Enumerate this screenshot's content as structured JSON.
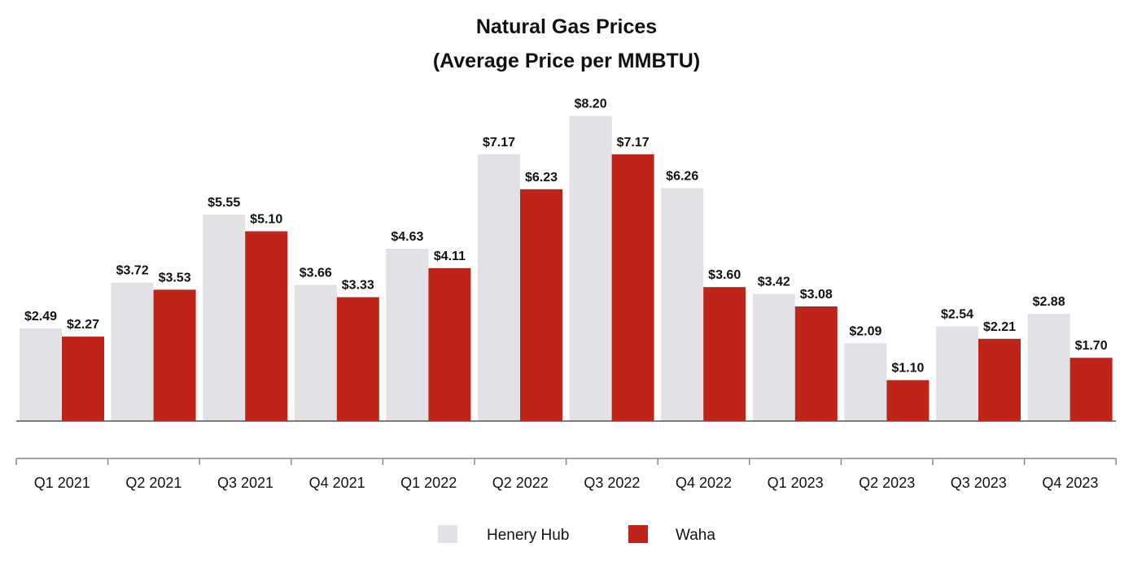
{
  "chart_data": {
    "type": "bar",
    "title": "Natural Gas Prices",
    "subtitle": "(Average Price per MMBTU)",
    "xlabel": "",
    "ylabel": "",
    "ylim": [
      0,
      8.6
    ],
    "grid": false,
    "legend_position": "bottom",
    "categories": [
      "Q1 2021",
      "Q2 2021",
      "Q3 2021",
      "Q4 2021",
      "Q1 2022",
      "Q2 2022",
      "Q3 2022",
      "Q4 2022",
      "Q1 2023",
      "Q2 2023",
      "Q3 2023",
      "Q4 2023"
    ],
    "series": [
      {
        "name": "Henery Hub",
        "color": "#e1e1e6",
        "values": [
          2.49,
          3.72,
          5.55,
          3.66,
          4.63,
          7.17,
          8.2,
          6.26,
          3.42,
          2.09,
          2.54,
          2.88
        ],
        "labels": [
          "$2.49",
          "$3.72",
          "$5.55",
          "$3.66",
          "$4.63",
          "$7.17",
          "$8.20",
          "$6.26",
          "$3.42",
          "$2.09",
          "$2.54",
          "$2.88"
        ]
      },
      {
        "name": "Waha",
        "color": "#bf2418",
        "values": [
          2.27,
          3.53,
          5.1,
          3.33,
          4.11,
          6.23,
          7.17,
          3.6,
          3.08,
          1.1,
          2.21,
          1.7
        ],
        "labels": [
          "$2.27",
          "$3.53",
          "$5.10",
          "$3.33",
          "$4.11",
          "$6.23",
          "$7.17",
          "$3.60",
          "$3.08",
          "$1.10",
          "$2.21",
          "$1.70"
        ]
      }
    ]
  }
}
